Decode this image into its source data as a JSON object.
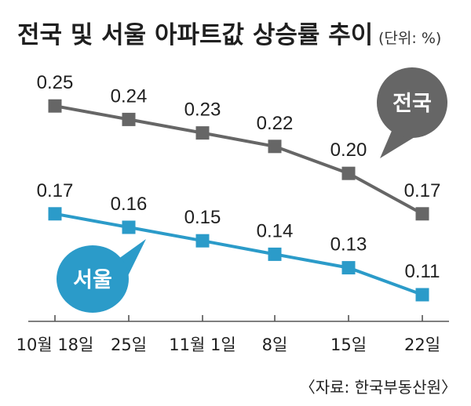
{
  "chart_data": {
    "type": "line",
    "title": "전국 및 서울 아파트값 상승률 추이",
    "unit": "(단위: %)",
    "source": "〈자료: 한국부동산원〉",
    "categories": [
      "10월 18일",
      "25일",
      "11월 1일",
      "8일",
      "15일",
      "22일"
    ],
    "series": [
      {
        "name": "전국",
        "values": [
          0.25,
          0.24,
          0.23,
          0.22,
          0.2,
          0.17
        ],
        "labels": [
          "0.25",
          "0.24",
          "0.23",
          "0.22",
          "0.20",
          "0.17"
        ],
        "color": "#666666"
      },
      {
        "name": "서울",
        "values": [
          0.17,
          0.16,
          0.15,
          0.14,
          0.13,
          0.11
        ],
        "labels": [
          "0.17",
          "0.16",
          "0.15",
          "0.14",
          "0.13",
          "0.11"
        ],
        "color": "#2b9bc9"
      }
    ],
    "marker": "square",
    "grid": false,
    "legend": "speech-bubble labels next to lines"
  }
}
